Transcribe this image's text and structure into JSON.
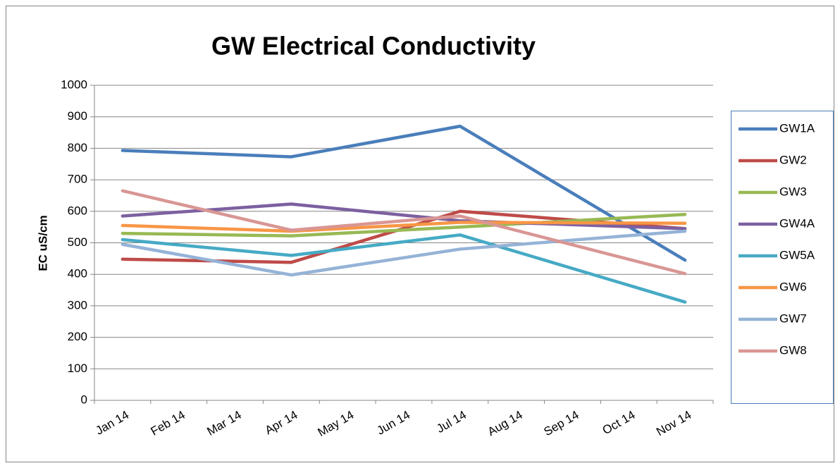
{
  "chart_data": {
    "type": "line",
    "title": "GW Electrical Conductivity",
    "y_label": "EC uS/cm",
    "categories": [
      "Jan 14",
      "Feb 14",
      "Mar 14",
      "Apr 14",
      "May 14",
      "Jun 14",
      "Jul 14",
      "Aug 14",
      "Sep 14",
      "Oct 14",
      "Nov 14"
    ],
    "ylim": [
      0,
      1000
    ],
    "yticks": [
      0,
      100,
      200,
      300,
      400,
      500,
      600,
      700,
      800,
      900,
      1000
    ],
    "grid": true,
    "legend": "right",
    "series": [
      {
        "name": "GW1A",
        "color": "#4a7ebb",
        "values": [
          793,
          null,
          null,
          773,
          null,
          null,
          870,
          null,
          null,
          null,
          445
        ]
      },
      {
        "name": "GW2",
        "color": "#be4b48",
        "values": [
          448,
          null,
          null,
          438,
          null,
          null,
          600,
          null,
          null,
          null,
          545
        ]
      },
      {
        "name": "GW3",
        "color": "#98b954",
        "values": [
          530,
          null,
          null,
          522,
          null,
          null,
          550,
          null,
          null,
          null,
          590
        ]
      },
      {
        "name": "GW4A",
        "color": "#7d60a0",
        "values": [
          585,
          null,
          null,
          623,
          null,
          null,
          570,
          null,
          null,
          null,
          545
        ]
      },
      {
        "name": "GW5A",
        "color": "#46aac5",
        "values": [
          510,
          null,
          null,
          460,
          null,
          null,
          525,
          null,
          null,
          null,
          312
        ]
      },
      {
        "name": "GW6",
        "color": "#f79646",
        "values": [
          555,
          null,
          null,
          537,
          null,
          null,
          565,
          null,
          null,
          null,
          562
        ]
      },
      {
        "name": "GW7",
        "color": "#95b3d7",
        "values": [
          495,
          null,
          null,
          398,
          null,
          null,
          480,
          null,
          null,
          null,
          537
        ]
      },
      {
        "name": "GW8",
        "color": "#d99694",
        "values": [
          665,
          null,
          null,
          540,
          null,
          null,
          585,
          null,
          null,
          null,
          402
        ]
      }
    ]
  }
}
